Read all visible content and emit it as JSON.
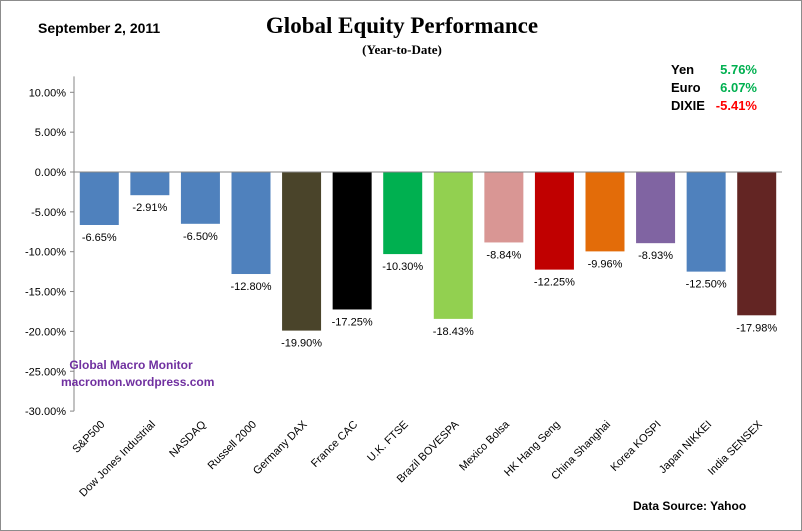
{
  "date": "September 2,  2011",
  "chart_data": {
    "type": "bar",
    "title": "Global Equity Performance",
    "subtitle": "(Year-to-Date)",
    "xlabel": "",
    "ylabel": "",
    "ylim": [
      -30,
      12
    ],
    "yticks": [
      10,
      5,
      0,
      -5,
      -10,
      -15,
      -20,
      -25,
      -30
    ],
    "ytick_labels": [
      "10.00%",
      "5.00%",
      "0.00%",
      "-5.00%",
      "-10.00%",
      "-15.00%",
      "-20.00%",
      "-25.00%",
      "-30.00%"
    ],
    "grid": false,
    "categories": [
      "S&P500",
      "Dow Jones Industrial",
      "NASDAQ",
      "Russell 2000",
      "Germany DAX",
      "France CAC",
      "U.K. FTSE",
      "Brazil BOVESPA",
      "Mexico Bolsa",
      "HK  Hang Seng",
      "China Shanghai",
      "Korea KOSPI",
      "Japan NIKKEI",
      "India SENSEX"
    ],
    "values": [
      -6.65,
      -2.91,
      -6.5,
      -12.8,
      -19.9,
      -17.25,
      -10.3,
      -18.43,
      -8.84,
      -12.25,
      -9.96,
      -8.93,
      -12.5,
      -17.98
    ],
    "data_labels": [
      "-6.65%",
      "-2.91%",
      "-6.50%",
      "-12.80%",
      "-19.90%",
      "-17.25%",
      "-10.30%",
      "-18.43%",
      "-8.84%",
      "-12.25%",
      "-9.96%",
      "-8.93%",
      "-12.50%",
      "-17.98%"
    ],
    "colors": [
      "#4f81bd",
      "#4f81bd",
      "#4f81bd",
      "#4f81bd",
      "#4a442a",
      "#000000",
      "#00b050",
      "#92d050",
      "#d99694",
      "#c00000",
      "#e36c09",
      "#8064a2",
      "#4f81bd",
      "#632523"
    ]
  },
  "currencies": [
    {
      "name": "Yen",
      "value": "5.76%",
      "color": "#00b050"
    },
    {
      "name": "Euro",
      "value": "6.07%",
      "color": "#00b050"
    },
    {
      "name": "DIXIE",
      "value": "-5.41%",
      "color": "#ff0000"
    }
  ],
  "watermark": {
    "line1": "Global Macro Monitor",
    "line2": "macromon.wordpress.com"
  },
  "source": "Data Source:   Yahoo"
}
